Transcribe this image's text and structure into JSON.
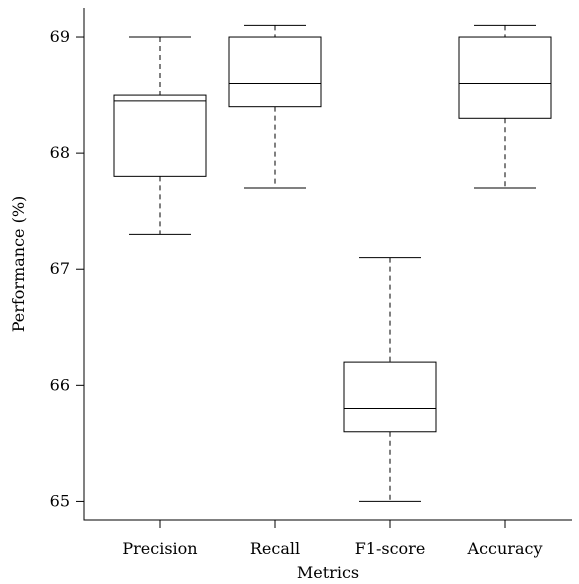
{
  "chart_data": {
    "type": "box",
    "title": "",
    "xlabel": "Metrics",
    "ylabel": "Performance (%)",
    "ylim": [
      64.84,
      69.25
    ],
    "yticks": [
      65,
      66,
      67,
      68,
      69
    ],
    "ytick_labels": [
      "65",
      "66",
      "67",
      "68",
      "69"
    ],
    "categories": [
      "Precision",
      "Recall",
      "F1-score",
      "Accuracy"
    ],
    "boxes": [
      {
        "category": "Precision",
        "min": 67.3,
        "q1": 67.8,
        "median": 68.45,
        "q3": 68.5,
        "max": 69.0
      },
      {
        "category": "Recall",
        "min": 67.7,
        "q1": 68.4,
        "median": 68.6,
        "q3": 69.0,
        "max": 69.1
      },
      {
        "category": "F1-score",
        "min": 65.0,
        "q1": 65.6,
        "median": 65.8,
        "q3": 66.2,
        "max": 67.1
      },
      {
        "category": "Accuracy",
        "min": 67.7,
        "q1": 68.3,
        "median": 68.6,
        "q3": 69.0,
        "max": 69.1
      }
    ],
    "grid": false,
    "legend": "none"
  }
}
